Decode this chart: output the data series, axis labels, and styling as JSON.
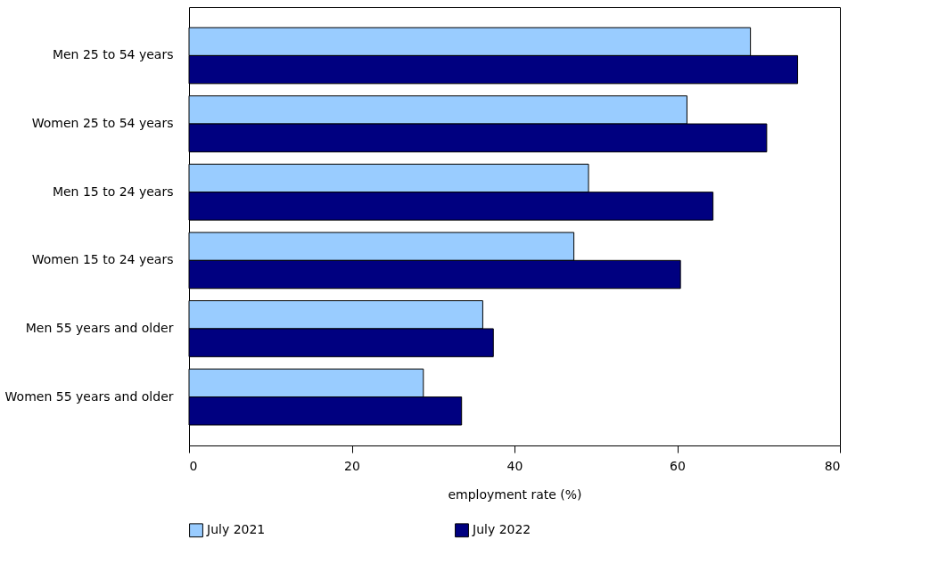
{
  "chart_data": {
    "type": "bar",
    "orientation": "horizontal",
    "xlabel": "employment rate (%)",
    "categories": [
      "Men 25 to 54 years",
      "Women 25 to 54 years",
      "Men 15 to 24 years",
      "Women 15 to 24 years",
      "Men 55 years and older",
      "Women 55 years and older"
    ],
    "series": [
      {
        "name": "July 2021",
        "color": "#99ccff",
        "values": [
          69.0,
          61.2,
          49.1,
          47.3,
          36.1,
          28.8
        ]
      },
      {
        "name": "July 2022",
        "color": "#000080",
        "values": [
          74.8,
          71.0,
          64.4,
          60.4,
          37.4,
          33.5
        ]
      }
    ],
    "xlim": [
      0,
      80
    ],
    "xticks": [
      0,
      20,
      40,
      60,
      80
    ],
    "legend": "bottom"
  }
}
